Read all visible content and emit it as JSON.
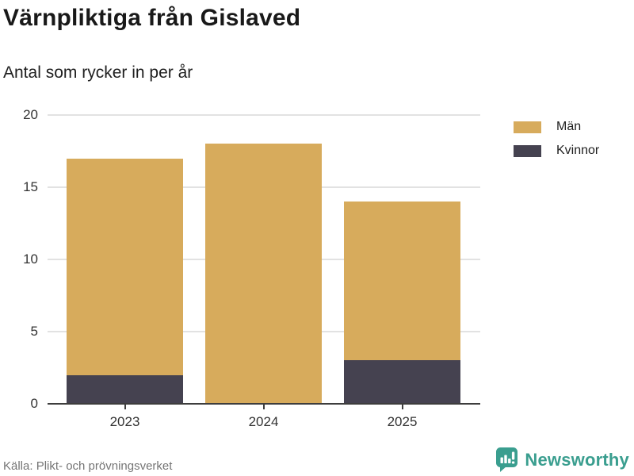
{
  "header": {
    "title": "Värnpliktiga från Gislaved",
    "subtitle": "Antal som rycker in per år"
  },
  "chart_data": {
    "type": "bar",
    "stacked": true,
    "title": "Värnpliktiga från Gislaved",
    "subtitle": "Antal som rycker in per år",
    "categories": [
      "2023",
      "2024",
      "2025"
    ],
    "series": [
      {
        "name": "Män",
        "color": "#d7ab5c",
        "values": [
          15,
          18,
          11
        ]
      },
      {
        "name": "Kvinnor",
        "color": "#454250",
        "values": [
          2,
          0,
          3
        ]
      }
    ],
    "stack_order_bottom_to_top": [
      "Kvinnor",
      "Män"
    ],
    "totals": [
      17,
      18,
      14
    ],
    "xlabel": "",
    "ylabel": "",
    "ylim": [
      0,
      20
    ],
    "yticks": [
      0,
      5,
      10,
      15,
      20
    ],
    "grid": "horizontal",
    "legend_position": "top-right"
  },
  "footer": {
    "source": "Källa: Plikt- och prövningsverket",
    "brand": "Newsworthy"
  },
  "colors": {
    "grid": "#e2e2e2",
    "axis": "#3d3d3d",
    "tick_text": "#333333",
    "source_text": "#757575",
    "brand_teal": "#3a9e8f"
  }
}
